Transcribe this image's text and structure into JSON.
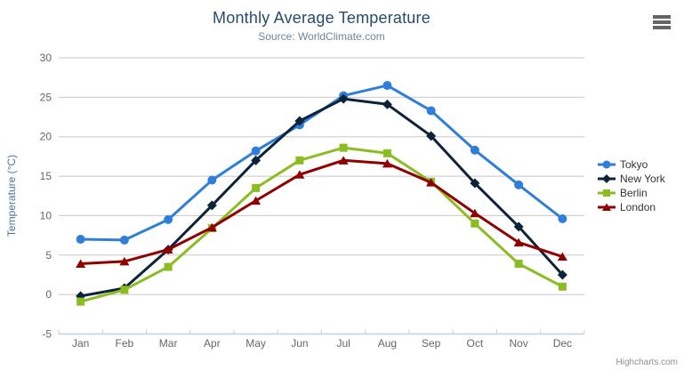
{
  "chart": {
    "credits": "Highcharts.com",
    "context_menu_icon": "hamburger-menu"
  },
  "style": {
    "background": "#ffffff",
    "title_color": "#274b6d",
    "subtitle_color": "#6d869f",
    "axis_label_color": "#666666",
    "axis_title_color": "#4d759e",
    "grid_color": "#c8c8c8",
    "axis_line_color": "#c0d0e0",
    "legend_text_color": "#333333",
    "credits_color": "#909090",
    "icon_color": "#666666"
  },
  "chart_data": {
    "type": "line",
    "title": "Monthly Average Temperature",
    "subtitle": "Source: WorldClimate.com",
    "xlabel": "",
    "ylabel": "Temperature (°C)",
    "categories": [
      "Jan",
      "Feb",
      "Mar",
      "Apr",
      "May",
      "Jun",
      "Jul",
      "Aug",
      "Sep",
      "Oct",
      "Nov",
      "Dec"
    ],
    "ylim": [
      -5,
      30
    ],
    "yticks": [
      -5,
      0,
      5,
      10,
      15,
      20,
      25,
      30
    ],
    "grid": true,
    "legend_position": "right",
    "series": [
      {
        "name": "Tokyo",
        "color": "#2f7ed8",
        "marker": "circle",
        "values": [
          7.0,
          6.9,
          9.5,
          14.5,
          18.2,
          21.5,
          25.2,
          26.5,
          23.3,
          18.3,
          13.9,
          9.6
        ]
      },
      {
        "name": "New York",
        "color": "#0d233a",
        "marker": "diamond",
        "values": [
          -0.2,
          0.8,
          5.7,
          11.3,
          17.0,
          22.0,
          24.8,
          24.1,
          20.1,
          14.1,
          8.6,
          2.5
        ]
      },
      {
        "name": "Berlin",
        "color": "#8bbc21",
        "marker": "square",
        "values": [
          -0.9,
          0.6,
          3.5,
          8.4,
          13.5,
          17.0,
          18.6,
          17.9,
          14.3,
          9.0,
          3.9,
          1.0
        ]
      },
      {
        "name": "London",
        "color": "#910000",
        "marker": "triangle",
        "values": [
          3.9,
          4.2,
          5.7,
          8.5,
          11.9,
          15.2,
          17.0,
          16.6,
          14.2,
          10.3,
          6.6,
          4.8
        ]
      }
    ]
  }
}
